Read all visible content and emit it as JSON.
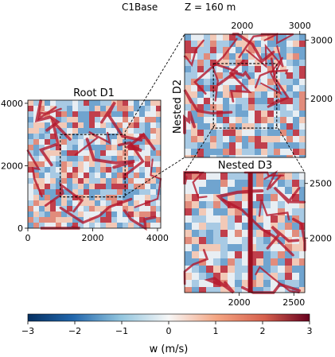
{
  "header": {
    "case": "C1Base",
    "height_label": "Z = 160 m"
  },
  "colors": {
    "neg": "#2c6fb0",
    "zero": "#f5f3f2",
    "pos": "#b4172c"
  },
  "chart_data": [
    {
      "type": "heatmap",
      "title": "Root D1",
      "x_ticks": [
        "0",
        "2000",
        "4000"
      ],
      "x_tick_values": [
        0,
        2000,
        4000
      ],
      "y_ticks": [
        "0",
        "2000",
        "4000"
      ],
      "y_tick_values": [
        0,
        2000,
        4000
      ],
      "xlim": [
        0,
        4100
      ],
      "ylim": [
        0,
        4100
      ],
      "nested_box": {
        "x": [
          1000,
          3000
        ],
        "y": [
          1000,
          3000
        ]
      }
    },
    {
      "type": "heatmap",
      "title": "Nested D2",
      "x_ticks": [
        "2000",
        "3000"
      ],
      "x_tick_values": [
        2000,
        3000
      ],
      "y_ticks": [
        "2000",
        "3000"
      ],
      "y_tick_values": [
        2000,
        3000
      ],
      "xlim": [
        1000,
        3100
      ],
      "ylim": [
        1000,
        3100
      ],
      "tick_positions": {
        "x": "top",
        "y": "right"
      },
      "nested_box": {
        "x": [
          1500,
          2600
        ],
        "y": [
          1500,
          2600
        ]
      }
    },
    {
      "type": "heatmap",
      "title": "Nested D3",
      "x_ticks": [
        "2000",
        "2500"
      ],
      "x_tick_values": [
        2000,
        2500
      ],
      "y_ticks": [
        "2000",
        "2500"
      ],
      "y_tick_values": [
        2000,
        2500
      ],
      "xlim": [
        1500,
        2600
      ],
      "ylim": [
        1500,
        2600
      ],
      "tick_positions": {
        "x": "bottom",
        "y": "right"
      }
    }
  ],
  "colorbar": {
    "ticks": [
      "−3",
      "−2",
      "−1",
      "0",
      "1",
      "2",
      "3"
    ],
    "tick_values": [
      -3,
      -2,
      -1,
      0,
      1,
      2,
      3
    ],
    "range": [
      -3,
      3
    ],
    "label": "w (m/s)"
  }
}
